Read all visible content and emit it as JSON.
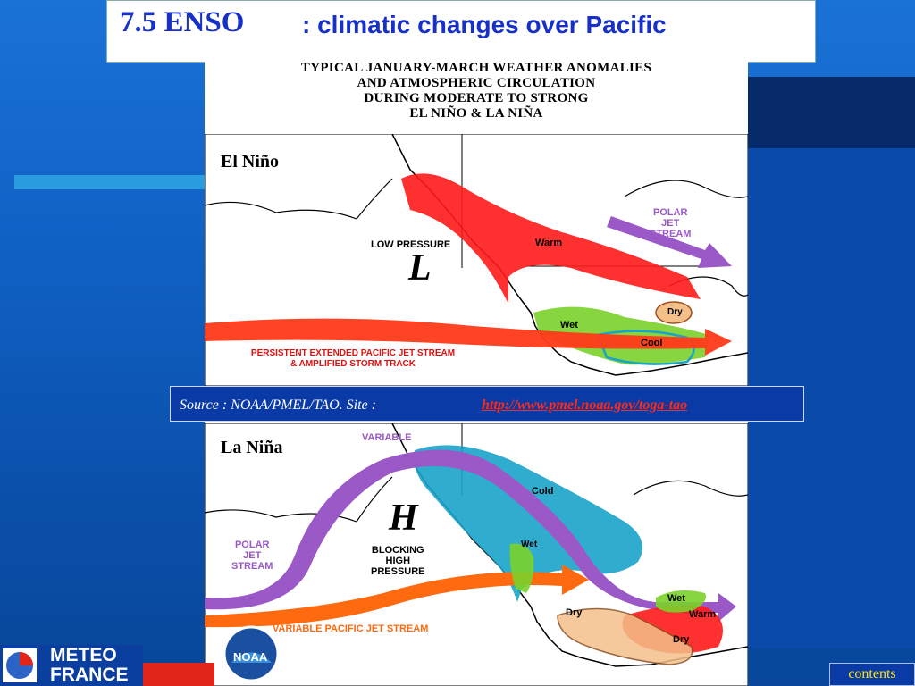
{
  "slide": {
    "title_main": "7.5 ENSO",
    "title_sub": ": climatic changes over Pacific"
  },
  "figure": {
    "heading_lines": [
      "TYPICAL JANUARY-MARCH WEATHER ANOMALIES",
      "AND ATMOSPHERIC CIRCULATION",
      "DURING MODERATE TO STRONG",
      "EL NIÑO & LA NIÑA"
    ],
    "el_nino": {
      "title": "El Niño",
      "low_pressure": "LOW PRESSURE",
      "low_symbol": "L",
      "warm": "Warm",
      "polar_jet": [
        "POLAR",
        "JET",
        "STREAM"
      ],
      "dry": "Dry",
      "wet": "Wet",
      "cool": "Cool",
      "jet_line1": "PERSISTENT EXTENDED PACIFIC JET STREAM",
      "jet_line2": "& AMPLIFIED STORM TRACK"
    },
    "la_nina": {
      "title": "La Niña",
      "variable": "VARIABLE",
      "cold": "Cold",
      "high_symbol": "H",
      "blocking": [
        "BLOCKING",
        "HIGH",
        "PRESSURE"
      ],
      "polar_jet": [
        "POLAR",
        "JET",
        "STREAM"
      ],
      "wet_west": "Wet",
      "wet_east": "Wet",
      "warm": "Warm",
      "dry_west": "Dry",
      "dry_east": "Dry",
      "variable_jet": "VARIABLE PACIFIC JET STREAM"
    },
    "noaa_logo": "NOAA"
  },
  "source": {
    "text": "Source : NOAA/PMEL/TAO.  Site : ",
    "link": "http://www.pmel.noaa.gov/toga-tao"
  },
  "logo": {
    "line1": "METEO",
    "line2": "FRANCE"
  },
  "nav": {
    "contents_label": "contents"
  },
  "colors": {
    "title_blue": "#1730c7",
    "link_red": "#ff2a1a",
    "contents_yellow": "#ffe600",
    "warm_red": "#ff1a1a",
    "cold_cyan": "#19a3c9",
    "jet_purple": "#9b59c8",
    "jet_orange": "#ff6a10",
    "wet_green": "#7ad12a",
    "dry_tan": "#f4c08a"
  }
}
